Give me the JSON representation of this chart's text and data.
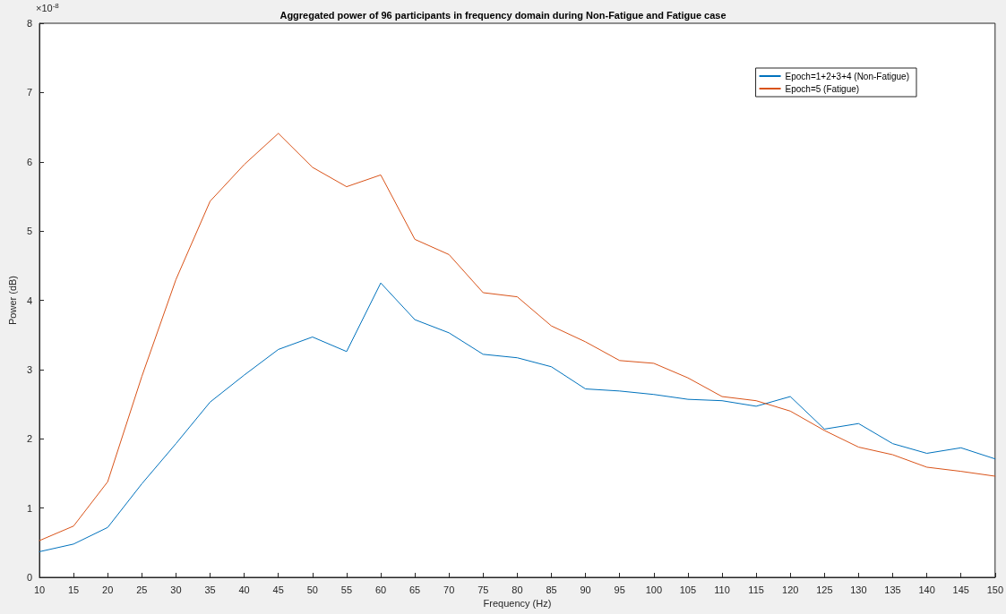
{
  "chart_data": {
    "type": "line",
    "title": "Aggregated power of 96 participants in frequency domain during Non-Fatigue and Fatigue case",
    "xlabel": "Frequency (Hz)",
    "ylabel": "Power (dB)",
    "annotations": [
      "×10$^{-8}$"
    ],
    "x": [
      10,
      15,
      20,
      25,
      30,
      35,
      40,
      45,
      50,
      55,
      60,
      65,
      70,
      75,
      80,
      85,
      90,
      95,
      100,
      105,
      110,
      115,
      120,
      125,
      130,
      135,
      140,
      145,
      150
    ],
    "series": [
      {
        "name": "Epoch=1+2+3+4 (Non-Fatigue)",
        "color": "#0072bd",
        "values": [
          0.37,
          0.48,
          0.72,
          1.35,
          1.93,
          2.53,
          2.92,
          3.29,
          3.47,
          3.26,
          4.25,
          3.72,
          3.53,
          3.22,
          3.17,
          3.04,
          2.72,
          2.69,
          2.64,
          2.57,
          2.55,
          2.47,
          2.61,
          2.14,
          2.22,
          1.93,
          1.79,
          1.87,
          1.71
        ]
      },
      {
        "name": "Epoch=5 (Fatigue)",
        "color": "#d95319",
        "values": [
          0.53,
          0.74,
          1.38,
          2.9,
          4.3,
          5.43,
          5.96,
          6.41,
          5.92,
          5.64,
          5.81,
          4.88,
          4.66,
          4.11,
          4.05,
          3.63,
          3.4,
          3.13,
          3.09,
          2.88,
          2.61,
          2.55,
          2.4,
          2.12,
          1.88,
          1.77,
          1.59,
          1.53,
          1.46
        ]
      }
    ],
    "xlim": [
      10,
      150
    ],
    "xticks": [
      10,
      15,
      20,
      25,
      30,
      35,
      40,
      45,
      50,
      55,
      60,
      65,
      70,
      75,
      80,
      85,
      90,
      95,
      100,
      105,
      110,
      115,
      120,
      125,
      130,
      135,
      140,
      145,
      150
    ],
    "ylim": [
      0,
      8
    ],
    "yticks": [
      0,
      1,
      2,
      3,
      4,
      5,
      6,
      7,
      8
    ],
    "grid": false,
    "legend": "top right",
    "marker": "none",
    "line_style": "solid"
  }
}
